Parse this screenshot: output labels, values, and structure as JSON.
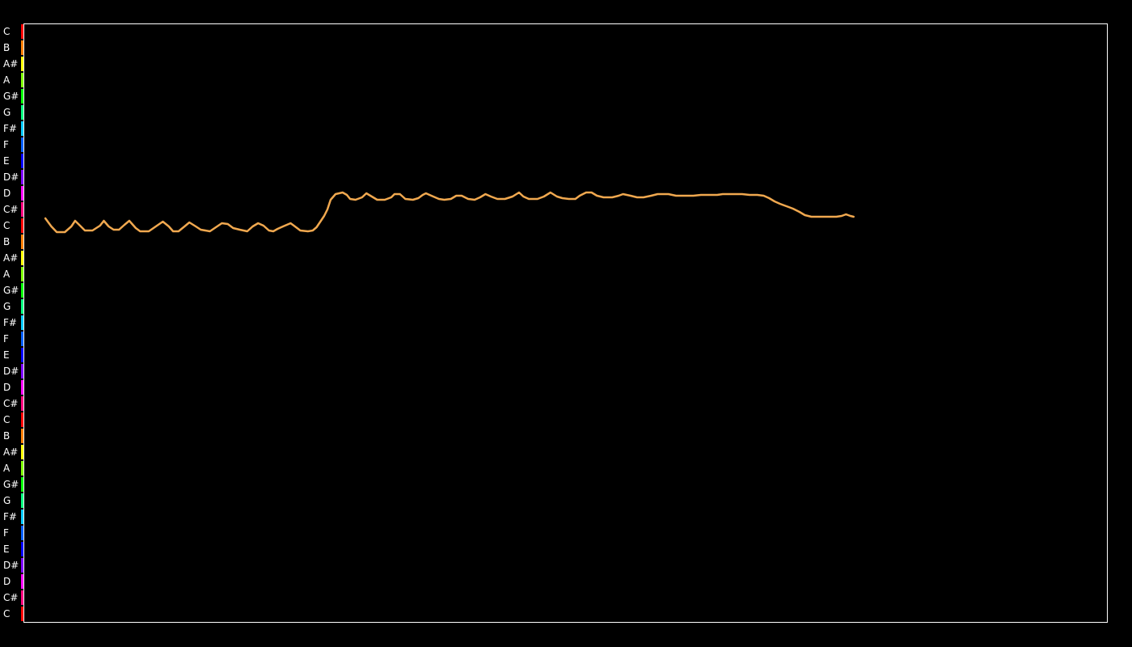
{
  "chart_data": {
    "type": "line",
    "title": "",
    "xlabel": "",
    "ylabel": "",
    "y_axis_note_labels": [
      "C",
      "B",
      "A#",
      "A",
      "G#",
      "G",
      "F#",
      "F",
      "E",
      "D#",
      "D",
      "C#",
      "C",
      "B",
      "A#",
      "A",
      "G#",
      "G",
      "F#",
      "F",
      "E",
      "D#",
      "D",
      "C#",
      "C",
      "B",
      "A#",
      "A",
      "G#",
      "G",
      "F#",
      "F",
      "E",
      "D#",
      "D",
      "C#",
      "C"
    ],
    "y_semitone_range": [
      0,
      36
    ],
    "x_range": [
      0,
      1
    ],
    "grid": false,
    "legend": "none",
    "series": [
      {
        "color": "#f0a84f",
        "points": [
          [
            0.0195,
            24.45
          ],
          [
            0.025,
            23.95
          ],
          [
            0.03,
            23.6
          ],
          [
            0.0375,
            23.6
          ],
          [
            0.0435,
            23.95
          ],
          [
            0.047,
            24.3
          ],
          [
            0.0515,
            24.0
          ],
          [
            0.056,
            23.7
          ],
          [
            0.063,
            23.7
          ],
          [
            0.07,
            24.0
          ],
          [
            0.0735,
            24.3
          ],
          [
            0.078,
            23.95
          ],
          [
            0.0825,
            23.75
          ],
          [
            0.0875,
            23.75
          ],
          [
            0.0925,
            24.05
          ],
          [
            0.097,
            24.3
          ],
          [
            0.103,
            23.85
          ],
          [
            0.107,
            23.65
          ],
          [
            0.115,
            23.65
          ],
          [
            0.1215,
            23.95
          ],
          [
            0.128,
            24.25
          ],
          [
            0.1335,
            23.95
          ],
          [
            0.1375,
            23.65
          ],
          [
            0.1425,
            23.65
          ],
          [
            0.148,
            23.95
          ],
          [
            0.1525,
            24.2
          ],
          [
            0.1585,
            23.95
          ],
          [
            0.163,
            23.75
          ],
          [
            0.1715,
            23.65
          ],
          [
            0.177,
            23.9
          ],
          [
            0.1825,
            24.15
          ],
          [
            0.188,
            24.1
          ],
          [
            0.193,
            23.85
          ],
          [
            0.199,
            23.75
          ],
          [
            0.206,
            23.65
          ],
          [
            0.211,
            23.95
          ],
          [
            0.216,
            24.15
          ],
          [
            0.221,
            24.0
          ],
          [
            0.226,
            23.7
          ],
          [
            0.23,
            23.65
          ],
          [
            0.234,
            23.8
          ],
          [
            0.239,
            23.95
          ],
          [
            0.246,
            24.15
          ],
          [
            0.25,
            23.95
          ],
          [
            0.255,
            23.7
          ],
          [
            0.262,
            23.65
          ],
          [
            0.2665,
            23.7
          ],
          [
            0.27,
            23.9
          ],
          [
            0.274,
            24.3
          ],
          [
            0.277,
            24.6
          ],
          [
            0.28,
            25.0
          ],
          [
            0.283,
            25.6
          ],
          [
            0.2875,
            25.95
          ],
          [
            0.294,
            26.05
          ],
          [
            0.298,
            25.9
          ],
          [
            0.301,
            25.65
          ],
          [
            0.306,
            25.6
          ],
          [
            0.312,
            25.75
          ],
          [
            0.316,
            26.0
          ],
          [
            0.321,
            25.8
          ],
          [
            0.326,
            25.6
          ],
          [
            0.333,
            25.6
          ],
          [
            0.339,
            25.75
          ],
          [
            0.342,
            25.95
          ],
          [
            0.347,
            25.95
          ],
          [
            0.352,
            25.65
          ],
          [
            0.359,
            25.6
          ],
          [
            0.364,
            25.7
          ],
          [
            0.368,
            25.9
          ],
          [
            0.371,
            26.0
          ],
          [
            0.376,
            25.85
          ],
          [
            0.383,
            25.65
          ],
          [
            0.388,
            25.6
          ],
          [
            0.394,
            25.65
          ],
          [
            0.399,
            25.85
          ],
          [
            0.404,
            25.85
          ],
          [
            0.41,
            25.65
          ],
          [
            0.416,
            25.6
          ],
          [
            0.421,
            25.75
          ],
          [
            0.426,
            25.95
          ],
          [
            0.431,
            25.8
          ],
          [
            0.437,
            25.65
          ],
          [
            0.444,
            25.65
          ],
          [
            0.451,
            25.8
          ],
          [
            0.457,
            26.05
          ],
          [
            0.461,
            25.8
          ],
          [
            0.466,
            25.65
          ],
          [
            0.474,
            25.65
          ],
          [
            0.48,
            25.8
          ],
          [
            0.486,
            26.05
          ],
          [
            0.492,
            25.8
          ],
          [
            0.497,
            25.7
          ],
          [
            0.503,
            25.65
          ],
          [
            0.509,
            25.65
          ],
          [
            0.513,
            25.85
          ],
          [
            0.519,
            26.05
          ],
          [
            0.524,
            26.05
          ],
          [
            0.529,
            25.85
          ],
          [
            0.535,
            25.75
          ],
          [
            0.543,
            25.75
          ],
          [
            0.549,
            25.85
          ],
          [
            0.553,
            25.95
          ],
          [
            0.56,
            25.85
          ],
          [
            0.566,
            25.75
          ],
          [
            0.572,
            25.75
          ],
          [
            0.579,
            25.85
          ],
          [
            0.585,
            25.95
          ],
          [
            0.595,
            25.95
          ],
          [
            0.602,
            25.85
          ],
          [
            0.61,
            25.85
          ],
          [
            0.618,
            25.85
          ],
          [
            0.625,
            25.9
          ],
          [
            0.633,
            25.9
          ],
          [
            0.64,
            25.9
          ],
          [
            0.645,
            25.95
          ],
          [
            0.653,
            25.95
          ],
          [
            0.663,
            25.95
          ],
          [
            0.67,
            25.9
          ],
          [
            0.677,
            25.9
          ],
          [
            0.683,
            25.85
          ],
          [
            0.688,
            25.7
          ],
          [
            0.693,
            25.5
          ],
          [
            0.698,
            25.35
          ],
          [
            0.704,
            25.2
          ],
          [
            0.71,
            25.05
          ],
          [
            0.716,
            24.85
          ],
          [
            0.721,
            24.65
          ],
          [
            0.727,
            24.55
          ],
          [
            0.735,
            24.55
          ],
          [
            0.743,
            24.55
          ],
          [
            0.75,
            24.55
          ],
          [
            0.755,
            24.6
          ],
          [
            0.759,
            24.7
          ],
          [
            0.763,
            24.6
          ],
          [
            0.766,
            24.55
          ]
        ]
      }
    ]
  },
  "colors": {
    "background": "#000000",
    "frame": "#ffffff",
    "line": "#f0a84f",
    "label_text": "#ffffff",
    "note_colors": {
      "C": "#ff0000",
      "C#": "#ff0080",
      "D": "#ff00ff",
      "D#": "#8000ff",
      "E": "#0000ff",
      "F": "#0060ff",
      "F#": "#00ccff",
      "G": "#00ff80",
      "G#": "#00ff00",
      "A": "#80ff00",
      "A#": "#ffff00",
      "B": "#ff8000"
    }
  }
}
